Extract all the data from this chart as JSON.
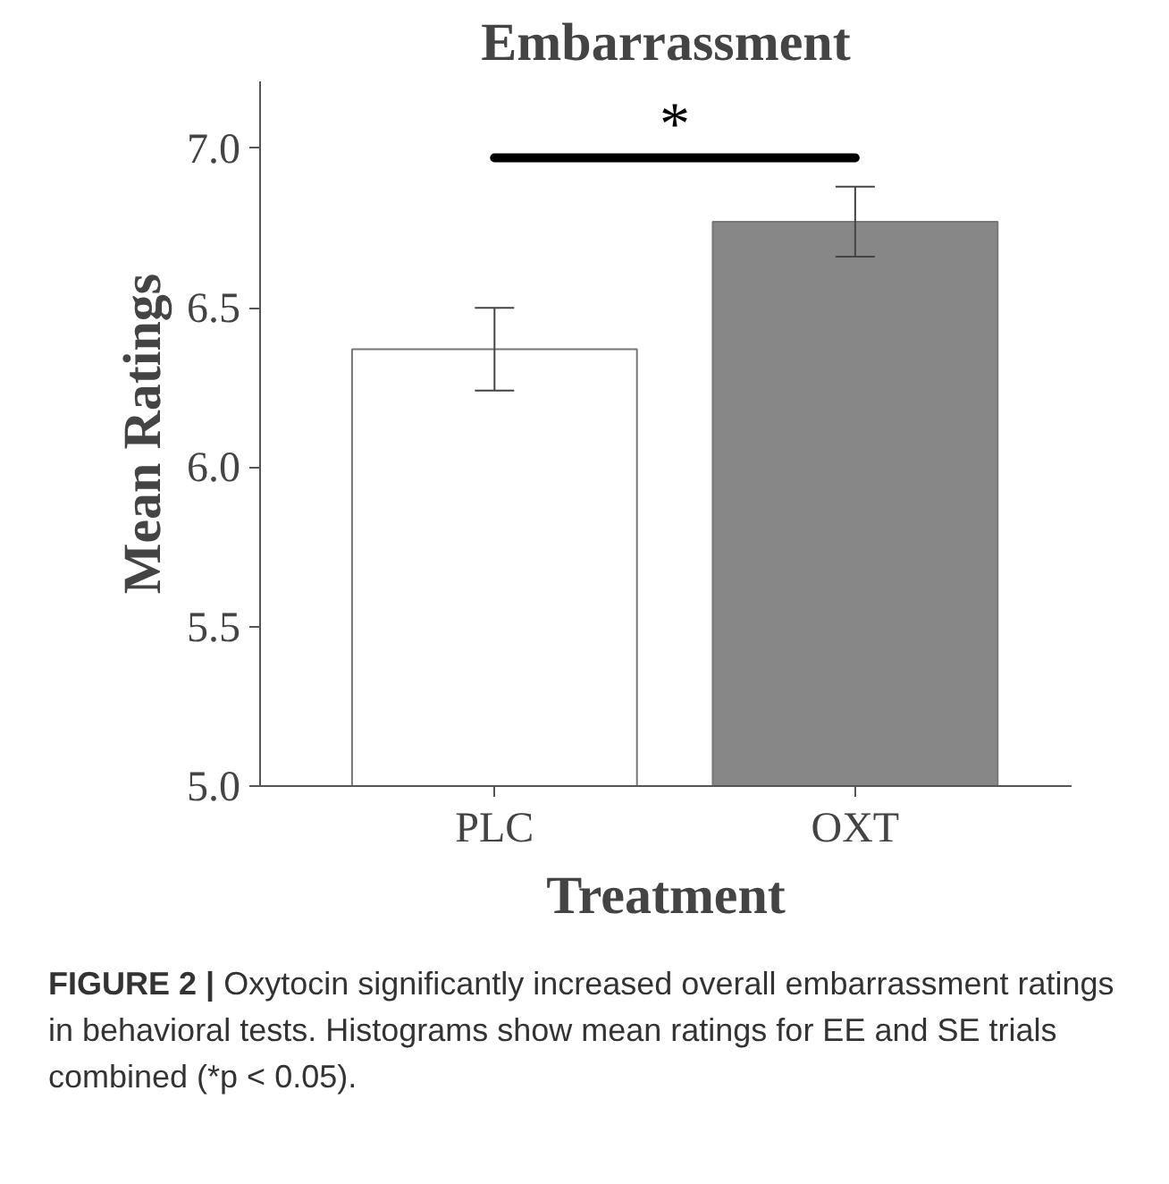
{
  "chart_data": {
    "type": "bar",
    "title": "Embarrassment",
    "xlabel": "Treatment",
    "ylabel": "Mean Ratings",
    "categories": [
      "PLC",
      "OXT"
    ],
    "values": [
      6.37,
      6.77
    ],
    "colors": [
      "#ffffff",
      "#878787"
    ],
    "errors": [
      0.13,
      0.11
    ],
    "ylim": [
      5.0,
      7.21
    ],
    "yticks": [
      {
        "value": 5.0,
        "label": "5.0"
      },
      {
        "value": 5.5,
        "label": "5.5"
      },
      {
        "value": 6.0,
        "label": "6.0"
      },
      {
        "value": 6.5,
        "label": "6.5"
      },
      {
        "value": 7.0,
        "label": "7.0"
      }
    ],
    "grid": false,
    "annotations": [
      "*",
      "FIGURE 2 | Oxytocin significantly increased overall embarrassment ratings in behavioral tests. Histograms show mean ratings for EE and SE trials combined (*p < 0.05)."
    ]
  }
}
